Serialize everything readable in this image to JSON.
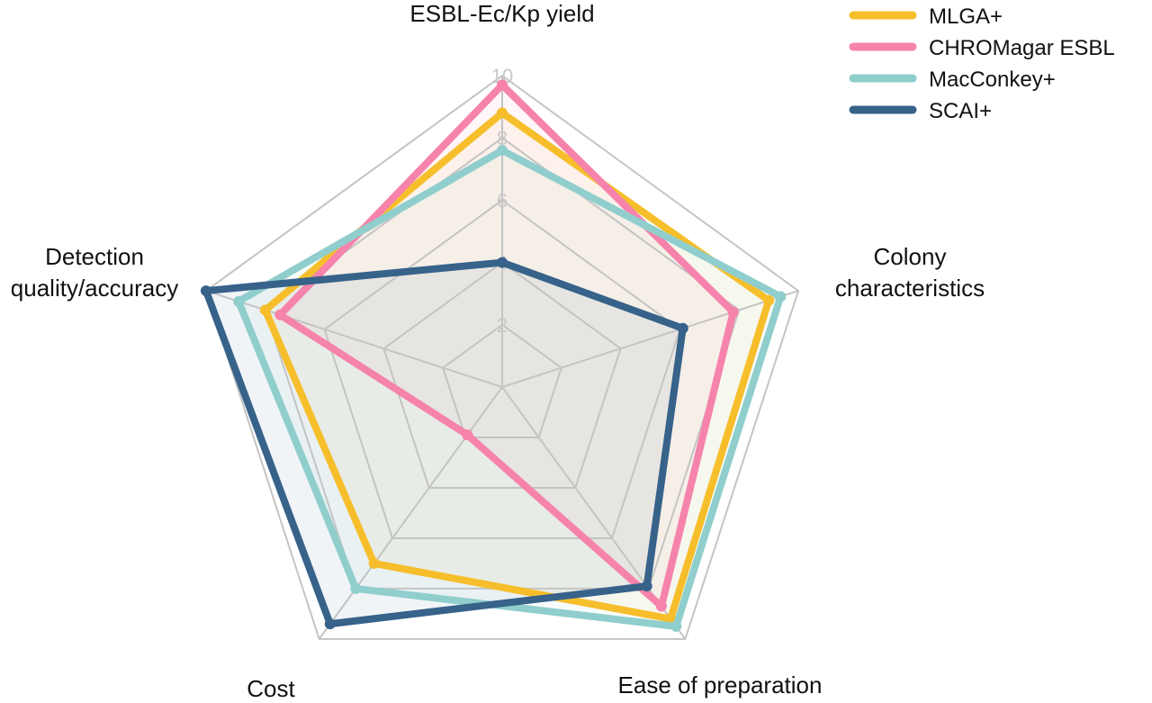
{
  "chart_data": {
    "type": "radar",
    "axes": [
      "ESBL-Ec/Kp yield",
      "Colony characteristics",
      "Ease of preparation",
      "Cost",
      "Detection quality/accuracy"
    ],
    "rticks": [
      2,
      4,
      6,
      8,
      10
    ],
    "rmax": 10,
    "series": [
      {
        "name": "MLGA+",
        "color": "#F6BE2B",
        "values": [
          8.8,
          9.0,
          9.2,
          7.0,
          8.0
        ]
      },
      {
        "name": "CHROMagar ESBL",
        "color": "#F583AB",
        "values": [
          9.7,
          7.8,
          8.7,
          1.9,
          7.5
        ]
      },
      {
        "name": "MacConkey+",
        "color": "#8FCECC",
        "values": [
          7.6,
          9.4,
          9.5,
          8.0,
          8.9
        ]
      },
      {
        "name": "SCAI+",
        "color": "#37628A",
        "values": [
          4.0,
          6.1,
          7.9,
          9.4,
          10.0
        ]
      }
    ]
  }
}
